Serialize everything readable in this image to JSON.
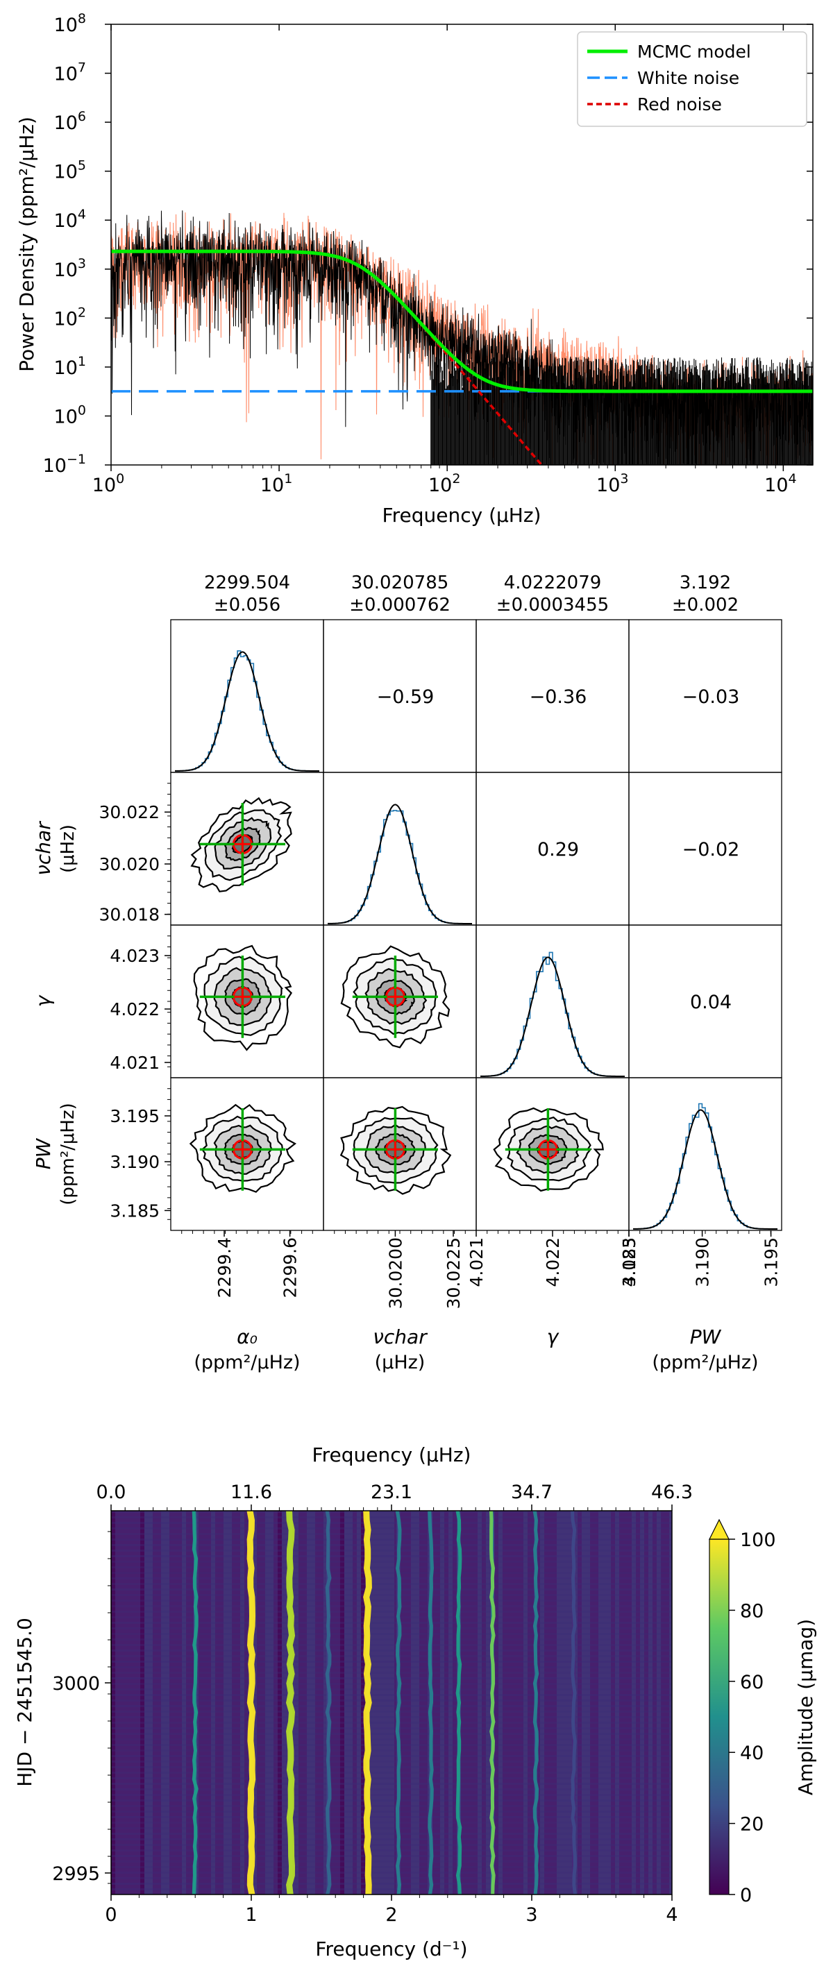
{
  "chart_data": [
    {
      "type": "line",
      "xlabel": "Frequency (μHz)",
      "ylabel": "Power Density (ppm²/μHz)",
      "xscale": "log",
      "yscale": "log",
      "xlim": [
        1,
        15000
      ],
      "ylim": [
        0.1,
        100000000
      ],
      "x_ticks": [
        {
          "v": 1,
          "base": "10",
          "exp": "0"
        },
        {
          "v": 10,
          "base": "10",
          "exp": "1"
        },
        {
          "v": 100,
          "base": "10",
          "exp": "2"
        },
        {
          "v": 1000,
          "base": "10",
          "exp": "3"
        },
        {
          "v": 10000,
          "base": "10",
          "exp": "4"
        }
      ],
      "y_ticks": [
        {
          "v": 0.1,
          "base": "10",
          "exp": "−1"
        },
        {
          "v": 1,
          "base": "10",
          "exp": "0"
        },
        {
          "v": 10,
          "base": "10",
          "exp": "1"
        },
        {
          "v": 100,
          "base": "10",
          "exp": "2"
        },
        {
          "v": 1000,
          "base": "10",
          "exp": "3"
        },
        {
          "v": 10000,
          "base": "10",
          "exp": "4"
        },
        {
          "v": 100000,
          "base": "10",
          "exp": "5"
        },
        {
          "v": 1000000,
          "base": "10",
          "exp": "6"
        },
        {
          "v": 10000000,
          "base": "10",
          "exp": "7"
        },
        {
          "v": 100000000,
          "base": "10",
          "exp": "8"
        }
      ],
      "legend_position": "top-right",
      "series": [
        {
          "name": "MCMC model",
          "color": "#00ee00",
          "style": "solid",
          "model": {
            "alpha0": 2299.504,
            "nu_char": 30.020785,
            "gamma": 4.0222079,
            "Pw": 3.192
          }
        },
        {
          "name": "White noise",
          "color": "#1e90ff",
          "style": "dashed",
          "value": 3.192
        },
        {
          "name": "Red noise",
          "color": "#dd0000",
          "style": "dotted"
        }
      ],
      "spectrum_colors": {
        "data": "#000000",
        "other": "#ff8c69"
      }
    },
    {
      "type": "corner",
      "parameters": [
        {
          "title_value": "2299.504",
          "title_error": "±0.056",
          "xlabel_sym": "α₀",
          "xlabel_unit": "(ppm²/μHz)",
          "ticks": [
            "2299.4",
            "2299.6"
          ]
        },
        {
          "title_value": "30.020785",
          "title_error": "±0.000762",
          "xlabel_sym": "νchar",
          "xlabel_unit": "(μHz)",
          "ticks": [
            "30.0200",
            "30.0225"
          ]
        },
        {
          "title_value": "4.0222079",
          "title_error": "±0.0003455",
          "xlabel_sym": "γ",
          "xlabel_unit": "",
          "ticks": [
            "4.021",
            "4.022",
            "4.023"
          ]
        },
        {
          "title_value": "3.192",
          "title_error": "±0.002",
          "xlabel_sym": "PW",
          "xlabel_unit": "(ppm²/μHz)",
          "ticks": [
            "3.185",
            "3.190",
            "3.195"
          ]
        }
      ],
      "row_labels": [
        {
          "sym": "νchar",
          "unit": "(μHz)",
          "ticks": [
            "30.022",
            "30.020",
            "30.018"
          ]
        },
        {
          "sym": "γ",
          "unit": "",
          "ticks": [
            "4.023",
            "4.022",
            "4.021"
          ]
        },
        {
          "sym": "PW",
          "unit": "(ppm²/μHz)",
          "ticks": [
            "3.195",
            "3.190",
            "3.185"
          ]
        }
      ],
      "correlations": [
        {
          "row": 0,
          "col": 1,
          "value": "−0.59"
        },
        {
          "row": 0,
          "col": 2,
          "value": "−0.36"
        },
        {
          "row": 0,
          "col": 3,
          "value": "−0.03"
        },
        {
          "row": 1,
          "col": 2,
          "value": "0.29"
        },
        {
          "row": 1,
          "col": 3,
          "value": "−0.02"
        },
        {
          "row": 2,
          "col": 3,
          "value": "0.04"
        }
      ],
      "contour_fills": [
        "#f2f2f2",
        "#d0d0d0",
        "#a9a9a9",
        "#6f6f6f"
      ],
      "marker_colors": {
        "median": "#ff0000",
        "crosshair": "#00aa00"
      },
      "hist_color": "#1f77b4"
    },
    {
      "type": "heatmap",
      "xlabel": "Frequency (d⁻¹)",
      "x2label": "Frequency (μHz)",
      "ylabel": "HJD − 2451545.0",
      "xlim": [
        0,
        4
      ],
      "x_ticks": [
        "0",
        "1",
        "2",
        "3",
        "4"
      ],
      "x2_ticks": [
        "0.0",
        "11.6",
        "23.1",
        "34.7",
        "46.3"
      ],
      "y_ticks": [
        "3000",
        "2995"
      ],
      "colorbar": {
        "label": "Amplitude (μmag)",
        "ticks": [
          "0",
          "20",
          "40",
          "60",
          "80",
          "100"
        ],
        "range": [
          0,
          100
        ],
        "extend": "max"
      },
      "peaks": [
        {
          "freq": 0.6,
          "amp": 55
        },
        {
          "freq": 1.0,
          "amp": 100
        },
        {
          "freq": 1.28,
          "amp": 90
        },
        {
          "freq": 1.55,
          "amp": 35
        },
        {
          "freq": 1.83,
          "amp": 100
        },
        {
          "freq": 2.05,
          "amp": 40
        },
        {
          "freq": 2.28,
          "amp": 45
        },
        {
          "freq": 2.48,
          "amp": 55
        },
        {
          "freq": 2.72,
          "amp": 75
        },
        {
          "freq": 3.03,
          "amp": 45
        },
        {
          "freq": 3.3,
          "amp": 25
        }
      ]
    }
  ]
}
